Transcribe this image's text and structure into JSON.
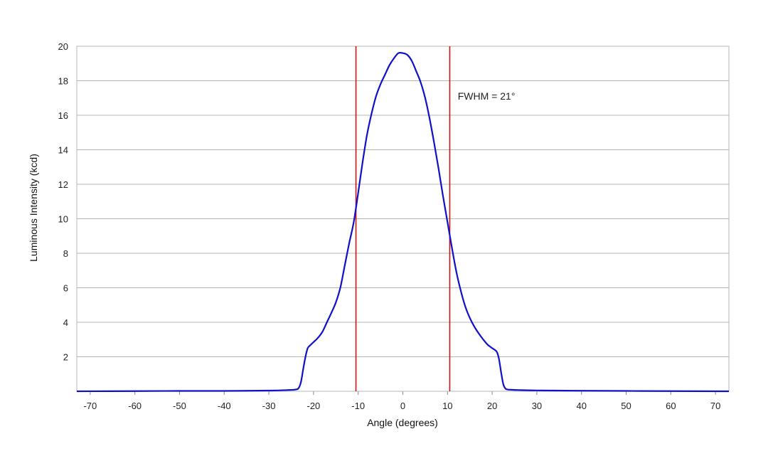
{
  "chart_data": {
    "type": "line",
    "title": "",
    "xlabel": "Angle (degrees)",
    "ylabel": "Luminous Intensity (kcd)",
    "xlim": [
      -73,
      73
    ],
    "ylim": [
      0,
      20
    ],
    "xticks": [
      -70,
      -60,
      -50,
      -40,
      -30,
      -20,
      -10,
      0,
      10,
      20,
      30,
      40,
      50,
      60,
      70
    ],
    "yticks": [
      2,
      4,
      6,
      8,
      10,
      12,
      14,
      16,
      18,
      20
    ],
    "grid": "horizontal",
    "series": [
      {
        "color": "#1010c8",
        "x": [
          -73,
          -60,
          -50,
          -40,
          -30,
          -26,
          -24,
          -23.3,
          -22.8,
          -22.3,
          -21.8,
          -21.3,
          -20.8,
          -20,
          -19,
          -18,
          -17,
          -16,
          -15,
          -14,
          -13,
          -12,
          -11,
          -10,
          -9,
          -8,
          -7,
          -6,
          -5,
          -4,
          -3,
          -2,
          -1,
          0,
          1,
          2,
          3,
          4,
          5,
          6,
          7,
          8,
          9,
          10,
          11,
          12,
          13,
          14,
          15,
          16,
          17,
          18,
          19,
          20,
          21,
          21.5,
          22,
          22.5,
          23,
          23.5,
          24,
          26,
          30,
          40,
          50,
          60,
          73
        ],
        "y": [
          0.0,
          0.01,
          0.02,
          0.02,
          0.04,
          0.07,
          0.1,
          0.2,
          0.55,
          1.3,
          2.0,
          2.5,
          2.65,
          2.85,
          3.1,
          3.45,
          4.0,
          4.55,
          5.15,
          6.0,
          7.3,
          8.6,
          9.8,
          11.5,
          13.3,
          14.9,
          16.1,
          17.1,
          17.8,
          18.35,
          18.9,
          19.3,
          19.6,
          19.6,
          19.5,
          19.15,
          18.55,
          17.9,
          17.0,
          15.8,
          14.4,
          12.9,
          11.3,
          9.8,
          8.3,
          6.9,
          5.8,
          4.9,
          4.25,
          3.75,
          3.35,
          3.0,
          2.7,
          2.5,
          2.3,
          1.9,
          1.1,
          0.4,
          0.15,
          0.1,
          0.09,
          0.07,
          0.05,
          0.03,
          0.02,
          0.01,
          0.0
        ]
      }
    ],
    "vlines": [
      {
        "x": -10.5,
        "color": "#c81414"
      },
      {
        "x": 10.5,
        "color": "#c81414"
      }
    ],
    "annotations": [
      {
        "text": "FWHM = 21°",
        "x": 12.3,
        "y": 16.9
      }
    ]
  }
}
